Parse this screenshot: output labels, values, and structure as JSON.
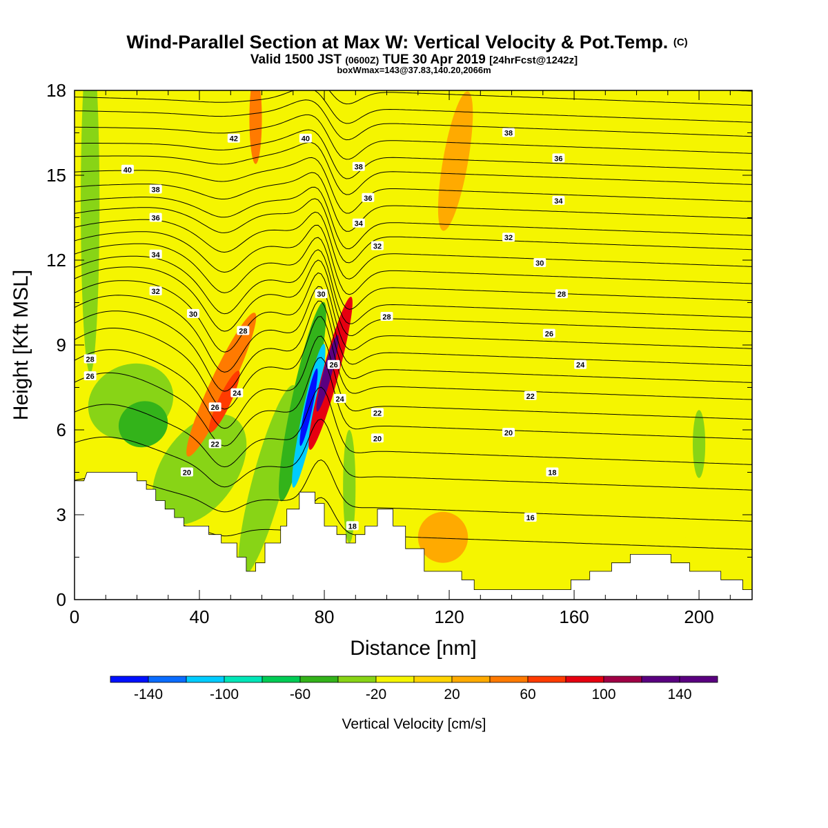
{
  "chart_data": {
    "type": "heatmap",
    "title": "Wind-Parallel Section at Max W: Vertical Velocity & Pot.Temp.",
    "title_mark": "(C)",
    "subtitle": {
      "prefix": "Valid 1500 JST",
      "utc": "(0600Z)",
      "date": "TUE 30 Apr 2019",
      "fcst": "[24hrFcst@1242z]"
    },
    "subtitle2": "boxWmax=143@37.83,140.20,2066m",
    "xlabel": "Distance [nm]",
    "ylabel": "Height [Kft MSL]",
    "xlim": [
      0,
      217
    ],
    "ylim": [
      0,
      18
    ],
    "xticks": [
      0,
      40,
      80,
      120,
      160,
      200
    ],
    "xtick_labels": [
      "0",
      "40",
      "80",
      "120",
      "160",
      "200"
    ],
    "yticks": [
      0,
      3,
      6,
      9,
      12,
      15,
      18
    ],
    "ytick_labels": [
      "0",
      "3",
      "6",
      "9",
      "12",
      "15",
      "18"
    ],
    "colorbar": {
      "title": "Vertical Velocity [cm/s]",
      "bounds": [
        -160,
        -140,
        -120,
        -100,
        -80,
        -60,
        -40,
        -20,
        0,
        20,
        40,
        60,
        80,
        100,
        120,
        140,
        160
      ],
      "colors": [
        "#0010ff",
        "#0a6cff",
        "#00ccff",
        "#00e6b8",
        "#00cc55",
        "#33b31a",
        "#88d416",
        "#f5f500",
        "#ffd400",
        "#ffaa00",
        "#ff7a00",
        "#ff3b00",
        "#e60010",
        "#a00045",
        "#5a0080",
        "#5a0080"
      ],
      "tick_values": [
        -140,
        -100,
        -60,
        -20,
        20,
        60,
        100,
        140
      ],
      "tick_labels": [
        "-140",
        "-100",
        "-60",
        "-20",
        "20",
        "60",
        "100",
        "140"
      ]
    },
    "colors": {
      "background_field": "#f5f500",
      "updraft_weak": "#ffd400",
      "updraft_mod": "#ffaa00",
      "updraft_strong": "#ff3b00",
      "updraft_max": "#e60010",
      "down_weak": "#88d416",
      "down_mod": "#33b31a",
      "down_strong": "#00cc55",
      "down_severe": "#00ccff",
      "down_max": "#0010ff",
      "terrain": "#ffffff",
      "contour": "#000000"
    },
    "terrain": [
      [
        0,
        4.2
      ],
      [
        3,
        4.2
      ],
      [
        4,
        4.5
      ],
      [
        20,
        4.5
      ],
      [
        20,
        4.2
      ],
      [
        23,
        4.2
      ],
      [
        23,
        3.9
      ],
      [
        26,
        3.9
      ],
      [
        26,
        3.5
      ],
      [
        29,
        3.5
      ],
      [
        29,
        3.2
      ],
      [
        32,
        3.2
      ],
      [
        32,
        2.9
      ],
      [
        35,
        2.9
      ],
      [
        35,
        2.6
      ],
      [
        43,
        2.6
      ],
      [
        43,
        2.3
      ],
      [
        47,
        2.3
      ],
      [
        47,
        2.0
      ],
      [
        52,
        2.0
      ],
      [
        52,
        1.5
      ],
      [
        55,
        1.5
      ],
      [
        55,
        1.0
      ],
      [
        58,
        1.0
      ],
      [
        58,
        1.3
      ],
      [
        61,
        1.3
      ],
      [
        61,
        2.0
      ],
      [
        66,
        2.0
      ],
      [
        66,
        2.6
      ],
      [
        68,
        2.6
      ],
      [
        68,
        3.2
      ],
      [
        72,
        3.2
      ],
      [
        72,
        3.8
      ],
      [
        77,
        3.8
      ],
      [
        77,
        3.4
      ],
      [
        80,
        3.4
      ],
      [
        80,
        2.6
      ],
      [
        84,
        2.6
      ],
      [
        84,
        2.3
      ],
      [
        87,
        2.3
      ],
      [
        87,
        2.0
      ],
      [
        90,
        2.0
      ],
      [
        90,
        2.3
      ],
      [
        93,
        2.3
      ],
      [
        93,
        2.6
      ],
      [
        97,
        2.6
      ],
      [
        97,
        3.2
      ],
      [
        102,
        3.2
      ],
      [
        102,
        2.6
      ],
      [
        106,
        2.6
      ],
      [
        106,
        1.8
      ],
      [
        112,
        1.8
      ],
      [
        112,
        1.0
      ],
      [
        124,
        1.0
      ],
      [
        124,
        0.7
      ],
      [
        128,
        0.7
      ],
      [
        128,
        0.35
      ],
      [
        159,
        0.35
      ],
      [
        159,
        0.7
      ],
      [
        165,
        0.7
      ],
      [
        165,
        1.0
      ],
      [
        172,
        1.0
      ],
      [
        172,
        1.3
      ],
      [
        178,
        1.3
      ],
      [
        178,
        1.6
      ],
      [
        191,
        1.6
      ],
      [
        191,
        1.3
      ],
      [
        197,
        1.3
      ],
      [
        197,
        1.0
      ],
      [
        207,
        1.0
      ],
      [
        207,
        0.7
      ],
      [
        214,
        0.7
      ],
      [
        214,
        0.35
      ],
      [
        217,
        0.35
      ]
    ],
    "w_blobs": [
      {
        "x": 5,
        "y": 14,
        "rx": 3,
        "ry": 6,
        "w": -30,
        "rot": 0
      },
      {
        "x": 18,
        "y": 7.0,
        "rx": 14,
        "ry": 1.3,
        "w": -30,
        "rot": -25
      },
      {
        "x": 22,
        "y": 6.2,
        "rx": 8,
        "ry": 0.8,
        "w": -50,
        "rot": -25
      },
      {
        "x": 40,
        "y": 4.6,
        "rx": 12,
        "ry": 2.2,
        "w": -30,
        "rot": 35
      },
      {
        "x": 62,
        "y": 4.2,
        "rx": 5,
        "ry": 3.5,
        "w": -30,
        "rot": 15
      },
      {
        "x": 47,
        "y": 7.6,
        "rx": 3.5,
        "ry": 2.8,
        "w": 40,
        "rot": 25
      },
      {
        "x": 48,
        "y": 7.0,
        "rx": 2,
        "ry": 1.2,
        "w": 60,
        "rot": 25
      },
      {
        "x": 58,
        "y": 17,
        "rx": 2,
        "ry": 1.6,
        "w": 40,
        "rot": 0
      },
      {
        "x": 73,
        "y": 7.0,
        "rx": 3.5,
        "ry": 3.6,
        "w": -50,
        "rot": 12
      },
      {
        "x": 75,
        "y": 6.5,
        "rx": 2.2,
        "ry": 2.6,
        "w": -110,
        "rot": 12
      },
      {
        "x": 75,
        "y": 6.8,
        "rx": 1.2,
        "ry": 1.4,
        "w": -150,
        "rot": 12
      },
      {
        "x": 82,
        "y": 8.0,
        "rx": 2.6,
        "ry": 2.8,
        "w": 80,
        "rot": 15
      },
      {
        "x": 81,
        "y": 8.0,
        "rx": 1.4,
        "ry": 1.4,
        "w": 120,
        "rot": 15
      },
      {
        "x": 88,
        "y": 4.0,
        "rx": 2,
        "ry": 2,
        "w": -30,
        "rot": 0
      },
      {
        "x": 122,
        "y": 15.5,
        "rx": 4,
        "ry": 2.5,
        "w": 30,
        "rot": 10
      },
      {
        "x": 118,
        "y": 2.2,
        "rx": 8,
        "ry": 0.9,
        "w": 30,
        "rot": 0
      },
      {
        "x": 193,
        "y": 5.5,
        "rx": 8,
        "ry": 3.5,
        "w": -10,
        "rot": 0
      },
      {
        "x": 200,
        "y": 5.5,
        "rx": 2,
        "ry": 1.2,
        "w": -30,
        "rot": 0
      }
    ],
    "w_bands": [
      {
        "x0": 2,
        "y0": 18,
        "x1": 22,
        "y1": 4,
        "width": 8,
        "w": -10
      },
      {
        "x0": 38,
        "y0": 18,
        "x1": 52,
        "y1": 3,
        "width": 9,
        "w": -10
      },
      {
        "x0": 67,
        "y0": 18,
        "x1": 73,
        "y1": 4,
        "width": 9,
        "w": -10
      },
      {
        "x0": 89,
        "y0": 18,
        "x1": 95,
        "y1": 9,
        "width": 8,
        "w": -10
      },
      {
        "x0": 122,
        "y0": 13,
        "x1": 130,
        "y1": 1,
        "width": 10,
        "w": -10
      },
      {
        "x0": 148,
        "y0": 8,
        "x1": 150,
        "y1": 1,
        "width": 6,
        "w": -10
      }
    ],
    "theta_levels": [
      16,
      17,
      18,
      19,
      20,
      21,
      22,
      23,
      24,
      25,
      26,
      27,
      28,
      29,
      30,
      31,
      32,
      33,
      34,
      35,
      36,
      37,
      38,
      39,
      40,
      41,
      42,
      43,
      44
    ],
    "theta_ref_heights": [
      2.2,
      3.2,
      4.3,
      5.2,
      6.1,
      6.8,
      7.5,
      8.1,
      8.7,
      9.3,
      9.9,
      10.4,
      11.0,
      11.6,
      12.2,
      12.8,
      13.3,
      13.9,
      14.5,
      15.1,
      15.6,
      16.2,
      16.8,
      17.3,
      17.9,
      18.4,
      19.0,
      19.5,
      20.1
    ],
    "theta_perturbations": [
      {
        "x": 10,
        "y": 8.0,
        "sx": 14,
        "sy": 3.5,
        "dz": 1.6
      },
      {
        "x": 30,
        "y": 10.0,
        "sx": 10,
        "sy": 3.0,
        "dz": 0.8
      },
      {
        "x": 48,
        "y": 8.0,
        "sx": 5,
        "sy": 3.0,
        "dz": -1.3
      },
      {
        "x": 62,
        "y": 10.5,
        "sx": 8,
        "sy": 4.0,
        "dz": 0.7
      },
      {
        "x": 79,
        "y": 7.5,
        "sx": 4,
        "sy": 4.5,
        "dz": 2.5
      },
      {
        "x": 86,
        "y": 13.0,
        "sx": 5,
        "sy": 4.0,
        "dz": -1.2
      },
      {
        "x": 74,
        "y": 16.0,
        "sx": 6,
        "sy": 3.0,
        "dz": 0.6
      }
    ],
    "theta_labels": [
      {
        "x": 5,
        "y": 7.9,
        "text": "26"
      },
      {
        "x": 5,
        "y": 8.5,
        "text": "28"
      },
      {
        "x": 36,
        "y": 4.5,
        "text": "20"
      },
      {
        "x": 45,
        "y": 5.5,
        "text": "22"
      },
      {
        "x": 45,
        "y": 6.8,
        "text": "26"
      },
      {
        "x": 52,
        "y": 7.3,
        "text": "24"
      },
      {
        "x": 54,
        "y": 9.5,
        "text": "28"
      },
      {
        "x": 38,
        "y": 10.1,
        "text": "30"
      },
      {
        "x": 26,
        "y": 10.9,
        "text": "32"
      },
      {
        "x": 26,
        "y": 12.2,
        "text": "34"
      },
      {
        "x": 26,
        "y": 13.5,
        "text": "36"
      },
      {
        "x": 26,
        "y": 14.5,
        "text": "38"
      },
      {
        "x": 17,
        "y": 15.2,
        "text": "40"
      },
      {
        "x": 51,
        "y": 16.3,
        "text": "42"
      },
      {
        "x": 74,
        "y": 16.3,
        "text": "40"
      },
      {
        "x": 79,
        "y": 10.8,
        "text": "30"
      },
      {
        "x": 83,
        "y": 8.3,
        "text": "26"
      },
      {
        "x": 85,
        "y": 7.1,
        "text": "24"
      },
      {
        "x": 89,
        "y": 2.6,
        "text": "18"
      },
      {
        "x": 97,
        "y": 6.6,
        "text": "22"
      },
      {
        "x": 97,
        "y": 5.7,
        "text": "20"
      },
      {
        "x": 97,
        "y": 12.5,
        "text": "32"
      },
      {
        "x": 91,
        "y": 13.3,
        "text": "34"
      },
      {
        "x": 94,
        "y": 14.2,
        "text": "36"
      },
      {
        "x": 91,
        "y": 15.3,
        "text": "38"
      },
      {
        "x": 100,
        "y": 10.0,
        "text": "28"
      },
      {
        "x": 139,
        "y": 16.5,
        "text": "38"
      },
      {
        "x": 155,
        "y": 15.6,
        "text": "36"
      },
      {
        "x": 155,
        "y": 14.1,
        "text": "34"
      },
      {
        "x": 139,
        "y": 12.8,
        "text": "32"
      },
      {
        "x": 149,
        "y": 11.9,
        "text": "30"
      },
      {
        "x": 156,
        "y": 10.8,
        "text": "28"
      },
      {
        "x": 152,
        "y": 9.4,
        "text": "26"
      },
      {
        "x": 162,
        "y": 8.3,
        "text": "24"
      },
      {
        "x": 146,
        "y": 7.2,
        "text": "22"
      },
      {
        "x": 139,
        "y": 5.9,
        "text": "20"
      },
      {
        "x": 153,
        "y": 4.5,
        "text": "18"
      },
      {
        "x": 146,
        "y": 2.9,
        "text": "16"
      }
    ]
  }
}
